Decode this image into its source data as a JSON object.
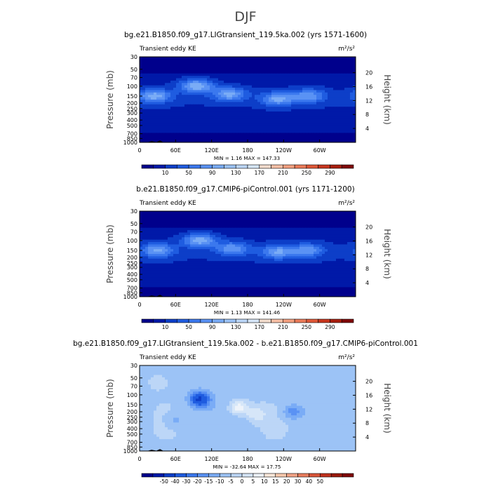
{
  "figure_title": "DJF",
  "colors": {
    "ke_scale": [
      "#00008c",
      "#0019a8",
      "#0d3ec8",
      "#1f5ce0",
      "#3b78ee",
      "#5a92f4",
      "#7aacf6",
      "#9cc3f6",
      "#bcd6f7",
      "#d6e6f8",
      "#f2dccd",
      "#f8c0a6",
      "#f4a080",
      "#ec7c5a",
      "#e05838",
      "#c8361e",
      "#a81e0e",
      "#800808"
    ],
    "diff_scale": [
      "#00008c",
      "#0019a8",
      "#0d3ec8",
      "#1f5ce0",
      "#3b78ee",
      "#5a92f4",
      "#7aacf6",
      "#9cc3f6",
      "#bcd6f7",
      "#d6e6f8",
      "#eef3fa",
      "#fbe8da",
      "#f8c9ad",
      "#f2a487",
      "#e97d5e",
      "#d9563a",
      "#c0321e",
      "#9a1a0c",
      "#800808"
    ],
    "terrain": "#000000"
  },
  "chart_data": [
    {
      "type": "heatmap",
      "title": "bg.e21.B1850.f09_g17.LIGtransient_119.5ka.002 (yrs 1571-1600)",
      "left_label": "Transient eddy KE",
      "units": "m²/s²",
      "xlabel": "",
      "ylabel": "Pressure  (mb)",
      "ylabel_right": "Height  (km)",
      "x_ticks": [
        "0",
        "60E",
        "120E",
        "180",
        "120W",
        "60W"
      ],
      "x_tick_values": [
        0,
        60,
        120,
        180,
        240,
        300
      ],
      "xlim": [
        0,
        360
      ],
      "y_ticks": [
        "30",
        "50",
        "70",
        "100",
        "150",
        "200",
        "250",
        "300",
        "400",
        "500",
        "700",
        "850",
        "1000"
      ],
      "y_tick_values": [
        30,
        50,
        70,
        100,
        150,
        200,
        250,
        300,
        400,
        500,
        700,
        850,
        1000
      ],
      "ylim": [
        1000,
        30
      ],
      "height_ticks": [
        "4",
        "8",
        "12",
        "16",
        "20"
      ],
      "height_tick_values": [
        4,
        8,
        12,
        16,
        20
      ],
      "stats": "MIN =    1.16   MAX = 147.33",
      "min": 1.16,
      "max": 147.33,
      "colorbar_levels": [
        0,
        10,
        30,
        50,
        70,
        90,
        110,
        130,
        150,
        170,
        190,
        210,
        230,
        250,
        270,
        290,
        310
      ],
      "colorbar_labels": [
        "10",
        "50",
        "90",
        "130",
        "170",
        "210",
        "250",
        "290"
      ],
      "jets": [
        {
          "lon": 25,
          "p": 150,
          "value": 115
        },
        {
          "lon": 95,
          "p": 100,
          "value": 125
        },
        {
          "lon": 150,
          "p": 140,
          "value": 110
        },
        {
          "lon": 230,
          "p": 170,
          "value": 110
        },
        {
          "lon": 282,
          "p": 150,
          "value": 100
        }
      ]
    },
    {
      "type": "heatmap",
      "title": "b.e21.B1850.f09_g17.CMIP6-piControl.001 (yrs 1171-1200)",
      "left_label": "Transient eddy KE",
      "units": "m²/s²",
      "xlabel": "",
      "ylabel": "Pressure  (mb)",
      "ylabel_right": "Height  (km)",
      "x_ticks": [
        "0",
        "60E",
        "120E",
        "180",
        "120W",
        "60W"
      ],
      "x_tick_values": [
        0,
        60,
        120,
        180,
        240,
        300
      ],
      "xlim": [
        0,
        360
      ],
      "y_ticks": [
        "30",
        "50",
        "70",
        "100",
        "150",
        "200",
        "250",
        "300",
        "400",
        "500",
        "700",
        "850",
        "1000"
      ],
      "y_tick_values": [
        30,
        50,
        70,
        100,
        150,
        200,
        250,
        300,
        400,
        500,
        700,
        850,
        1000
      ],
      "ylim": [
        1000,
        30
      ],
      "height_ticks": [
        "4",
        "8",
        "12",
        "16",
        "20"
      ],
      "height_tick_values": [
        4,
        8,
        12,
        16,
        20
      ],
      "stats": "MIN =    1.13   MAX = 141.46",
      "min": 1.13,
      "max": 141.46,
      "colorbar_levels": [
        0,
        10,
        30,
        50,
        70,
        90,
        110,
        130,
        150,
        170,
        190,
        210,
        230,
        250,
        270,
        290,
        310
      ],
      "colorbar_labels": [
        "10",
        "50",
        "90",
        "130",
        "170",
        "210",
        "250",
        "290"
      ],
      "jets": [
        {
          "lon": 30,
          "p": 150,
          "value": 110
        },
        {
          "lon": 100,
          "p": 100,
          "value": 118
        },
        {
          "lon": 155,
          "p": 140,
          "value": 100
        },
        {
          "lon": 230,
          "p": 160,
          "value": 105
        },
        {
          "lon": 280,
          "p": 150,
          "value": 95
        }
      ]
    },
    {
      "type": "heatmap",
      "title": "bg.e21.B1850.f09_g17.LIGtransient_119.5ka.002 - b.e21.B1850.f09_g17.CMIP6-piControl.001",
      "left_label": "Transient eddy KE",
      "units": "m²/s²",
      "xlabel": "",
      "ylabel": "Pressure  (mb)",
      "ylabel_right": "Height  (km)",
      "x_ticks": [
        "0",
        "60E",
        "120E",
        "180",
        "120W",
        "60W"
      ],
      "x_tick_values": [
        0,
        60,
        120,
        180,
        240,
        300
      ],
      "xlim": [
        0,
        360
      ],
      "y_ticks": [
        "30",
        "50",
        "70",
        "100",
        "150",
        "200",
        "250",
        "300",
        "400",
        "500",
        "700",
        "850",
        "1000"
      ],
      "y_tick_values": [
        30,
        50,
        70,
        100,
        150,
        200,
        250,
        300,
        400,
        500,
        700,
        850,
        1000
      ],
      "ylim": [
        1000,
        30
      ],
      "height_ticks": [
        "4",
        "8",
        "12",
        "16",
        "20"
      ],
      "height_tick_values": [
        4,
        8,
        12,
        16,
        20
      ],
      "stats": "MIN = -32.64   MAX =  17.75",
      "min": -32.64,
      "max": 17.75,
      "colorbar_levels": [
        -60,
        -50,
        -40,
        -30,
        -20,
        -15,
        -10,
        -5,
        0,
        5,
        10,
        15,
        20,
        30,
        40,
        50,
        60
      ],
      "colorbar_labels": [
        "-50",
        "-40",
        "-30",
        "-20",
        "-15",
        "-10",
        "-5",
        "0",
        "5",
        "10",
        "15",
        "20",
        "30",
        "40",
        "50"
      ],
      "anomalies": [
        {
          "lon": 100,
          "p": 120,
          "value": -30
        },
        {
          "lon": 165,
          "p": 170,
          "value": 16
        },
        {
          "lon": 195,
          "p": 220,
          "value": 10
        },
        {
          "lon": 255,
          "p": 200,
          "value": -12
        },
        {
          "lon": 60,
          "p": 280,
          "value": -6
        },
        {
          "lon": 30,
          "p": 60,
          "value": 4
        }
      ]
    }
  ]
}
